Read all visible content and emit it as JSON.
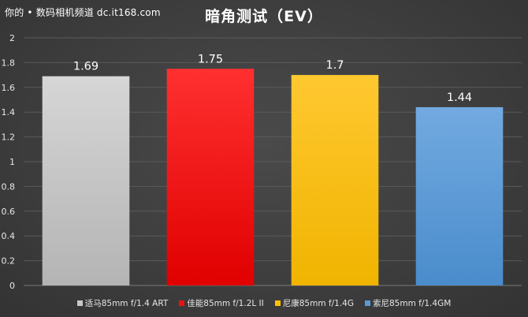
{
  "watermark": "你的 • 数码相机频道 dc.it168.com",
  "chart_data": {
    "type": "bar",
    "title": "暗角测试（EV）",
    "categories": [
      "适马85mm f/1.4 ART",
      "佳能85mm f/1.2L II",
      "尼康85mm f/1.4G",
      "索尼85mm f/1.4GM"
    ],
    "values": [
      1.69,
      1.75,
      1.7,
      1.44
    ],
    "value_labels": [
      "1.69",
      "1.75",
      "1.7",
      "1.44"
    ],
    "colors": [
      "#c8c8c8",
      "#ee1111",
      "#ffc000",
      "#5b9bd5"
    ],
    "ylim": [
      0,
      2
    ],
    "yticks": [
      0,
      0.2,
      0.4,
      0.6,
      0.8,
      1,
      1.2,
      1.4,
      1.6,
      1.8,
      2
    ],
    "ytick_labels": [
      "0",
      "0.2",
      "0.4",
      "0.6",
      "0.8",
      "1",
      "1.2",
      "1.4",
      "1.6",
      "1.8",
      "2"
    ],
    "grid": true,
    "legend_position": "bottom",
    "xlabel": "",
    "ylabel": ""
  }
}
